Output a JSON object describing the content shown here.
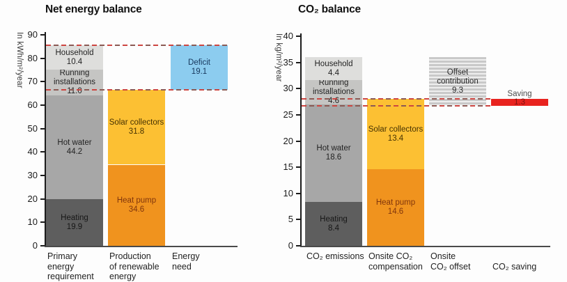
{
  "chart_data": [
    {
      "type": "bar",
      "stacked": true,
      "title": "Net energy balance",
      "ylabel": "In kWh/m²/year",
      "xlabel": "",
      "ylim": [
        0,
        90
      ],
      "ytick_step": 10,
      "yticks": [
        "90",
        "80",
        "70",
        "60",
        "50",
        "40",
        "30",
        "20",
        "10",
        "0"
      ],
      "grid": false,
      "legend_position": "none",
      "dashed_reference_lines": [
        {
          "value": 85.5
        },
        {
          "value": 66.4
        }
      ],
      "dash_colors": [
        "#cd4540",
        "#8b5a54"
      ],
      "columns": [
        {
          "label_lines": [
            "Primary",
            "energy",
            "requirement"
          ],
          "segments": [
            {
              "name": "Heating",
              "value": 19.9,
              "value_label": "19.9",
              "color": "#5e5e5e",
              "text_color": "#171717"
            },
            {
              "name": "Hot water",
              "value": 44.2,
              "value_label": "44.2",
              "color": "#a7a7a7",
              "text_color": "#232323"
            },
            {
              "name": "Running installations",
              "value": 11.0,
              "value_label": "11.0",
              "color": "#c5c5c3",
              "text_color": "#232323"
            },
            {
              "name": "Household",
              "value": 10.4,
              "value_label": "10.4",
              "color": "#dededc",
              "text_color": "#232323"
            }
          ]
        },
        {
          "label_lines": [
            "Production",
            "of renewable",
            "energy"
          ],
          "segments": [
            {
              "name": "Heat pump",
              "value": 34.6,
              "value_label": "34.6",
              "color": "#f0931e",
              "text_color": "#80350c"
            },
            {
              "name": "Solar collectors",
              "value": 31.8,
              "value_label": "31.8",
              "color": "#fcc033",
              "text_color": "#463202"
            }
          ]
        },
        {
          "label_lines": [
            "Energy",
            "need"
          ],
          "segments": [
            {
              "name": "Deficit",
              "value": 19.1,
              "value_label": "19.1",
              "base": 66.4,
              "color": "#8cccef",
              "text_color": "#17375c"
            }
          ]
        }
      ]
    },
    {
      "type": "bar",
      "stacked": true,
      "title": "CO₂ balance",
      "ylabel": "In kg/m²/year",
      "xlabel": "",
      "ylim": [
        0,
        40
      ],
      "ytick_step": 5,
      "yticks": [
        "40",
        "35",
        "30",
        "25",
        "20",
        "15",
        "10",
        "5",
        "0"
      ],
      "grid": false,
      "legend_position": "none",
      "dashed_reference_lines": [
        {
          "value": 28.0
        },
        {
          "value": 26.7
        }
      ],
      "dash_colors": [
        "#cd4540",
        "#8b5a54"
      ],
      "columns": [
        {
          "label_lines": [
            "CO₂ emissions"
          ],
          "segments": [
            {
              "name": "Heating",
              "value": 8.4,
              "value_label": "8.4",
              "color": "#5e5e5e",
              "text_color": "#171717"
            },
            {
              "name": "Hot water",
              "value": 18.6,
              "value_label": "18.6",
              "color": "#a7a7a7",
              "text_color": "#232323"
            },
            {
              "name": "Running installations",
              "value": 4.6,
              "value_label": "4.6",
              "color": "#c5c5c3",
              "text_color": "#232323"
            },
            {
              "name": "Household",
              "value": 4.4,
              "value_label": "4.4",
              "color": "#dededc",
              "text_color": "#232323"
            }
          ]
        },
        {
          "label_lines": [
            "Onsite CO₂",
            "compensation"
          ],
          "segments": [
            {
              "name": "Heat pump",
              "value": 14.6,
              "value_label": "14.6",
              "color": "#f0931e",
              "text_color": "#80350c"
            },
            {
              "name": "Solar collectors",
              "value": 13.4,
              "value_label": "13.4",
              "color": "#fcc033",
              "text_color": "#463202"
            }
          ]
        },
        {
          "label_lines": [
            "Onsite",
            "CO₂ offset"
          ],
          "segments": [
            {
              "name": "Offset contribution",
              "value": 9.3,
              "value_label": "9.3",
              "base": 26.7,
              "hatch": true,
              "color": "#c9c9c9",
              "text_color": "#2c2c2c"
            }
          ]
        },
        {
          "label_lines": [
            "CO₂ saving"
          ],
          "label_dy": 15,
          "segments": [
            {
              "name": "Saving",
              "value": 1.3,
              "value_label": "1.3",
              "base": 26.7,
              "color": "#e8231f",
              "text_color": "#4c4c4c",
              "value_color": "#7e1210",
              "label_outside": true
            }
          ]
        }
      ]
    }
  ]
}
